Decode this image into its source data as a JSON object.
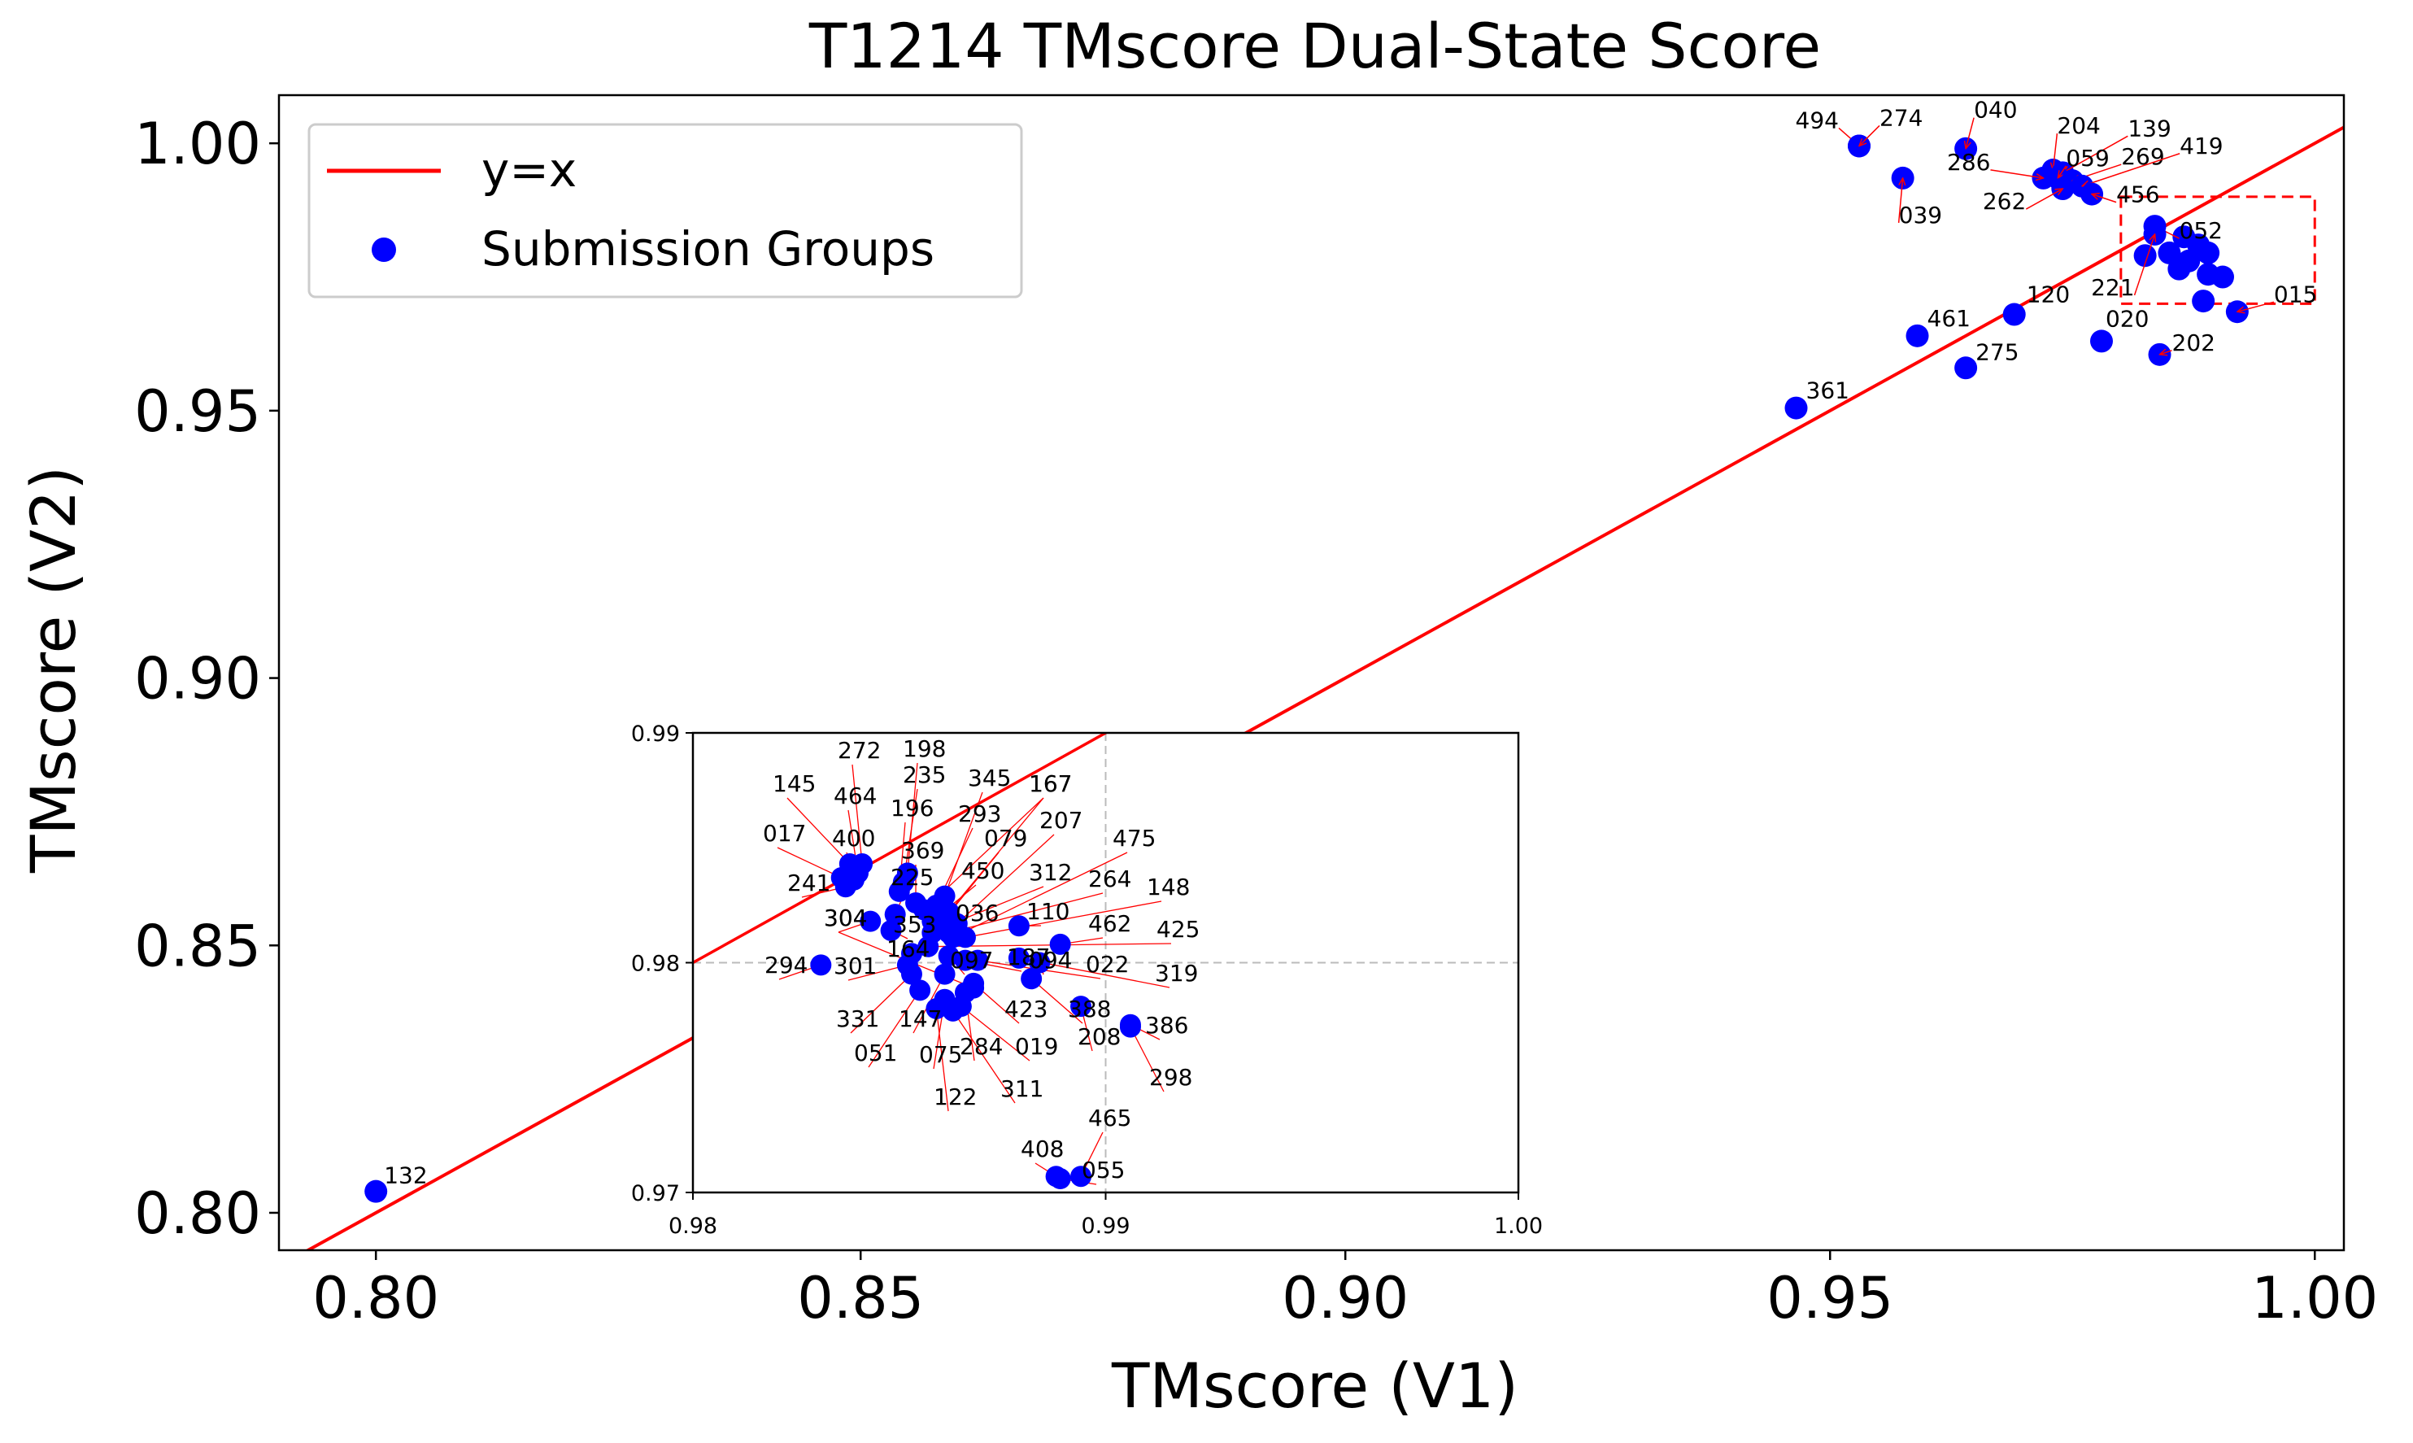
{
  "chart_data": [
    {
      "type": "scatter",
      "title": "T1214 TMscore Dual-State Score",
      "xlabel": "TMscore (V1)",
      "ylabel": "TMscore (V2)",
      "xlim": [
        0.79,
        1.003
      ],
      "ylim": [
        0.793,
        1.009
      ],
      "xticks": [
        "0.80",
        "0.85",
        "0.90",
        "0.95",
        "1.00"
      ],
      "yticks": [
        "0.80",
        "0.85",
        "0.90",
        "0.95",
        "1.00"
      ],
      "legend": {
        "placement": "upper-left",
        "line_label": "y=x",
        "points_label": "Submission Groups"
      },
      "colors": {
        "line": "#ff0000",
        "points": "#0000ff",
        "arrow": "#ff0000",
        "zoom_box": "#ff0000"
      },
      "zoom_box": {
        "x": [
          0.98,
          1.0
        ],
        "y": [
          0.97,
          0.99
        ]
      },
      "points": [
        {
          "label": "494",
          "x": 0.953,
          "y": 0.9995
        },
        {
          "label": "274",
          "x": 0.953,
          "y": 0.9995
        },
        {
          "label": "040",
          "x": 0.964,
          "y": 0.999
        },
        {
          "label": "039",
          "x": 0.9575,
          "y": 0.9935
        },
        {
          "label": "204",
          "x": 0.973,
          "y": 0.995
        },
        {
          "label": "139",
          "x": 0.974,
          "y": 0.9945
        },
        {
          "label": "059",
          "x": 0.9735,
          "y": 0.9935
        },
        {
          "label": "286",
          "x": 0.972,
          "y": 0.9935
        },
        {
          "label": "269",
          "x": 0.975,
          "y": 0.993
        },
        {
          "label": "419",
          "x": 0.976,
          "y": 0.992
        },
        {
          "label": "262",
          "x": 0.974,
          "y": 0.9915
        },
        {
          "label": "456",
          "x": 0.977,
          "y": 0.9905
        },
        {
          "label": "052",
          "x": 0.9835,
          "y": 0.9845
        },
        {
          "label": "221",
          "x": 0.9835,
          "y": 0.983
        },
        {
          "label": "015",
          "x": 0.992,
          "y": 0.9685
        },
        {
          "label": "120",
          "x": 0.969,
          "y": 0.968
        },
        {
          "label": "461",
          "x": 0.959,
          "y": 0.964
        },
        {
          "label": "020",
          "x": 0.978,
          "y": 0.963
        },
        {
          "label": "202",
          "x": 0.984,
          "y": 0.9605
        },
        {
          "label": "275",
          "x": 0.964,
          "y": 0.958
        },
        {
          "label": "361",
          "x": 0.9465,
          "y": 0.9505
        },
        {
          "label": "132",
          "x": 0.8,
          "y": 0.804
        }
      ],
      "extra_points": [
        [
          0.9825,
          0.979
        ],
        [
          0.985,
          0.9795
        ],
        [
          0.9865,
          0.9825
        ],
        [
          0.988,
          0.981
        ],
        [
          0.989,
          0.9795
        ],
        [
          0.989,
          0.9755
        ],
        [
          0.9905,
          0.975
        ],
        [
          0.9885,
          0.9705
        ],
        [
          0.987,
          0.978
        ],
        [
          0.986,
          0.9765
        ]
      ]
    },
    {
      "type": "scatter",
      "role": "inset",
      "xlim": [
        0.98,
        1.0
      ],
      "ylim": [
        0.97,
        0.99
      ],
      "xticks": [
        "0.98",
        "0.99",
        "1.00"
      ],
      "yticks": [
        "0.97",
        "0.98",
        "0.99"
      ],
      "reference_lines": {
        "x": 0.99,
        "y": 0.98
      },
      "points": [
        {
          "label": "145",
          "x": 0.9838,
          "y": 0.9843
        },
        {
          "label": "272",
          "x": 0.9841,
          "y": 0.9843
        },
        {
          "label": "464",
          "x": 0.984,
          "y": 0.9839
        },
        {
          "label": "017",
          "x": 0.9836,
          "y": 0.9837
        },
        {
          "label": "400",
          "x": 0.9839,
          "y": 0.9836
        },
        {
          "label": "241",
          "x": 0.9837,
          "y": 0.9833
        },
        {
          "label": "198",
          "x": 0.9852,
          "y": 0.9839
        },
        {
          "label": "235",
          "x": 0.9851,
          "y": 0.9835
        },
        {
          "label": "196",
          "x": 0.985,
          "y": 0.9831
        },
        {
          "label": "345",
          "x": 0.9861,
          "y": 0.9829
        },
        {
          "label": "293",
          "x": 0.9859,
          "y": 0.9825
        },
        {
          "label": "167",
          "x": 0.9862,
          "y": 0.9822
        },
        {
          "label": "079",
          "x": 0.9861,
          "y": 0.9819
        },
        {
          "label": "207",
          "x": 0.9864,
          "y": 0.9817
        },
        {
          "label": "369",
          "x": 0.9854,
          "y": 0.9826
        },
        {
          "label": "167",
          "x": 0.9856,
          "y": 0.9823
        },
        {
          "label": "225",
          "x": 0.9849,
          "y": 0.9821
        },
        {
          "label": "450",
          "x": 0.9858,
          "y": 0.9818
        },
        {
          "label": "312",
          "x": 0.986,
          "y": 0.9815
        },
        {
          "label": "264",
          "x": 0.9862,
          "y": 0.9813
        },
        {
          "label": "475",
          "x": 0.9863,
          "y": 0.9811
        },
        {
          "label": "148",
          "x": 0.9866,
          "y": 0.9811
        },
        {
          "label": "304",
          "x": 0.9843,
          "y": 0.9818
        },
        {
          "label": "353",
          "x": 0.9848,
          "y": 0.9814
        },
        {
          "label": "110",
          "x": 0.9879,
          "y": 0.9816
        },
        {
          "label": "036",
          "x": 0.9858,
          "y": 0.9813
        },
        {
          "label": "462",
          "x": 0.9889,
          "y": 0.9808
        },
        {
          "label": "425",
          "x": 0.9857,
          "y": 0.9807
        },
        {
          "label": "164",
          "x": 0.9853,
          "y": 0.9804
        },
        {
          "label": "097",
          "x": 0.9862,
          "y": 0.9803
        },
        {
          "label": "187",
          "x": 0.9866,
          "y": 0.9801
        },
        {
          "label": "022",
          "x": 0.9869,
          "y": 0.9801
        },
        {
          "label": "319",
          "x": 0.9879,
          "y": 0.9802
        },
        {
          "label": "094",
          "x": 0.9884,
          "y": 0.98
        },
        {
          "label": "301",
          "x": 0.9852,
          "y": 0.9799
        },
        {
          "label": "294",
          "x": 0.9831,
          "y": 0.9799
        },
        {
          "label": "331",
          "x": 0.9853,
          "y": 0.9795
        },
        {
          "label": "147",
          "x": 0.9861,
          "y": 0.9795
        },
        {
          "label": "388",
          "x": 0.9882,
          "y": 0.9793
        },
        {
          "label": "423",
          "x": 0.9868,
          "y": 0.9791
        },
        {
          "label": "051",
          "x": 0.9855,
          "y": 0.9788
        },
        {
          "label": "304",
          "x": 0.9868,
          "y": 0.9789
        },
        {
          "label": "075",
          "x": 0.9861,
          "y": 0.9784
        },
        {
          "label": "284",
          "x": 0.9866,
          "y": 0.9787
        },
        {
          "label": "019",
          "x": 0.9865,
          "y": 0.9781
        },
        {
          "label": "122",
          "x": 0.9859,
          "y": 0.978
        },
        {
          "label": "311",
          "x": 0.9863,
          "y": 0.9779
        },
        {
          "label": "208",
          "x": 0.9894,
          "y": 0.9781
        },
        {
          "label": "386",
          "x": 0.9906,
          "y": 0.9773
        },
        {
          "label": "298",
          "x": 0.9906,
          "y": 0.9772
        },
        {
          "label": "465",
          "x": 0.9894,
          "y": 0.9707
        },
        {
          "label": "408",
          "x": 0.9888,
          "y": 0.9707
        },
        {
          "label": "055",
          "x": 0.9889,
          "y": 0.9706
        }
      ]
    }
  ]
}
